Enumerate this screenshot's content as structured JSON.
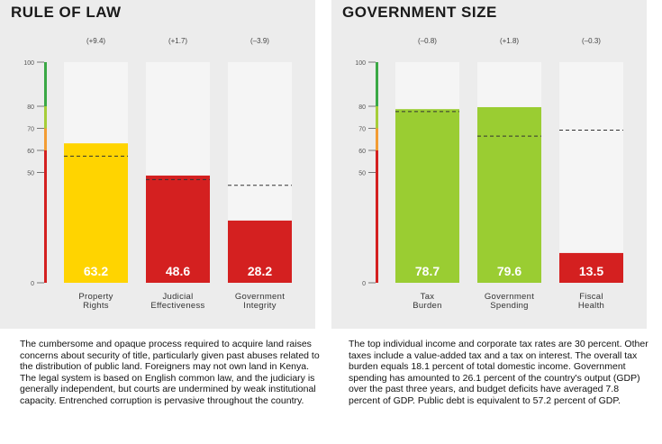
{
  "panels": [
    {
      "title": "RULE OF LAW",
      "description": "The cumbersome and opaque process required to acquire land raises concerns about security of title, particularly given past abuses related to the distribution of public land. Foreigners may not own land in Kenya. The legal system is based on English common law, and the judiciary is generally independent, but courts are undermined by weak institutional capacity. Entrenched corruption is pervasive throughout the country."
    },
    {
      "title": "GOVERNMENT SIZE",
      "description": "The top individual income and corporate tax rates are 30 percent. Other taxes include a value-added tax and a tax on interest. The overall tax burden equals 18.1 percent of total domestic income. Government spending has amounted to 26.1 percent of the country's output (GDP) over the past three years, and budget deficits have averaged 7.8 percent of GDP. Public debt is equivalent to 57.2 percent of GDP."
    }
  ],
  "colors": {
    "yellow": "#ffd400",
    "red": "#d42020",
    "green": "#9acd32",
    "bar_bg": "#f5f5f5",
    "scale_green": "#3aa845",
    "scale_lightgreen": "#a6ce39",
    "scale_orange": "#f39c33",
    "scale_red": "#d42020"
  },
  "chart_data": [
    {
      "type": "bar",
      "title": "RULE OF LAW",
      "ylim": [
        0,
        100
      ],
      "yticks": [
        0,
        50,
        60,
        70,
        80,
        100
      ],
      "categories": [
        "Property Rights",
        "Judicial Effectiveness",
        "Government Integrity"
      ],
      "category_lines": [
        [
          "Property",
          "Rights"
        ],
        [
          "Judicial",
          "Effectiveness"
        ],
        [
          "Government",
          "Integrity"
        ]
      ],
      "values": [
        63.2,
        48.6,
        28.2
      ],
      "value_labels": [
        "63.2",
        "48.6",
        "28.2"
      ],
      "changes": [
        "(+9.4)",
        "(+1.7)",
        "(–3.9)"
      ],
      "reference_values": [
        57.4,
        46.8,
        44.2
      ],
      "bar_colors": [
        "yellow",
        "red",
        "red"
      ]
    },
    {
      "type": "bar",
      "title": "GOVERNMENT SIZE",
      "ylim": [
        0,
        100
      ],
      "yticks": [
        0,
        50,
        60,
        70,
        80,
        100
      ],
      "categories": [
        "Tax Burden",
        "Government Spending",
        "Fiscal Health"
      ],
      "category_lines": [
        [
          "Tax",
          "Burden"
        ],
        [
          "Government",
          "Spending"
        ],
        [
          "Fiscal",
          "Health"
        ]
      ],
      "values": [
        78.7,
        79.6,
        13.5
      ],
      "value_labels": [
        "78.7",
        "79.6",
        "13.5"
      ],
      "changes": [
        "(–0.8)",
        "(+1.8)",
        "(–0.3)"
      ],
      "reference_values": [
        77.6,
        66.5,
        69.2
      ],
      "bar_colors": [
        "green",
        "green",
        "red"
      ]
    }
  ]
}
